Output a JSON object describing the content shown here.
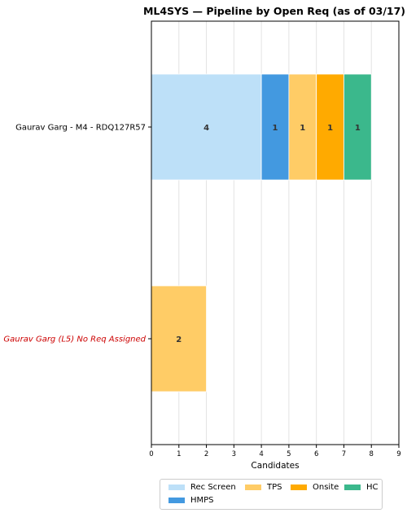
{
  "chart_data": {
    "type": "bar",
    "orientation": "horizontal",
    "stacked": true,
    "title": "ML4SYS — Pipeline by Open Req (as of 03/17)",
    "xlabel": "Candidates",
    "ylabel": "",
    "xlim": [
      0,
      9
    ],
    "xticks": [
      "0",
      "1",
      "2",
      "3",
      "4",
      "5",
      "6",
      "7",
      "8",
      "9"
    ],
    "grid": "vertical",
    "categories": [
      {
        "label": "Gaurav Garg - M4 - RDQ127R57",
        "style": "normal",
        "color": "#000000"
      },
      {
        "label": "Gaurav Garg (L5) No Req Assigned",
        "style": "italic",
        "color": "#cc0000"
      }
    ],
    "series": [
      {
        "name": "Rec Screen",
        "color": "#bde0f8",
        "values": [
          4,
          0
        ]
      },
      {
        "name": "HMPS",
        "color": "#4399e0",
        "values": [
          1,
          0
        ]
      },
      {
        "name": "TPS",
        "color": "#ffcc66",
        "values": [
          1,
          2
        ]
      },
      {
        "name": "Onsite",
        "color": "#ffaa00",
        "values": [
          1,
          0
        ]
      },
      {
        "name": "HC",
        "color": "#3bb88c",
        "values": [
          1,
          0
        ]
      }
    ],
    "legend_position": "bottom"
  }
}
